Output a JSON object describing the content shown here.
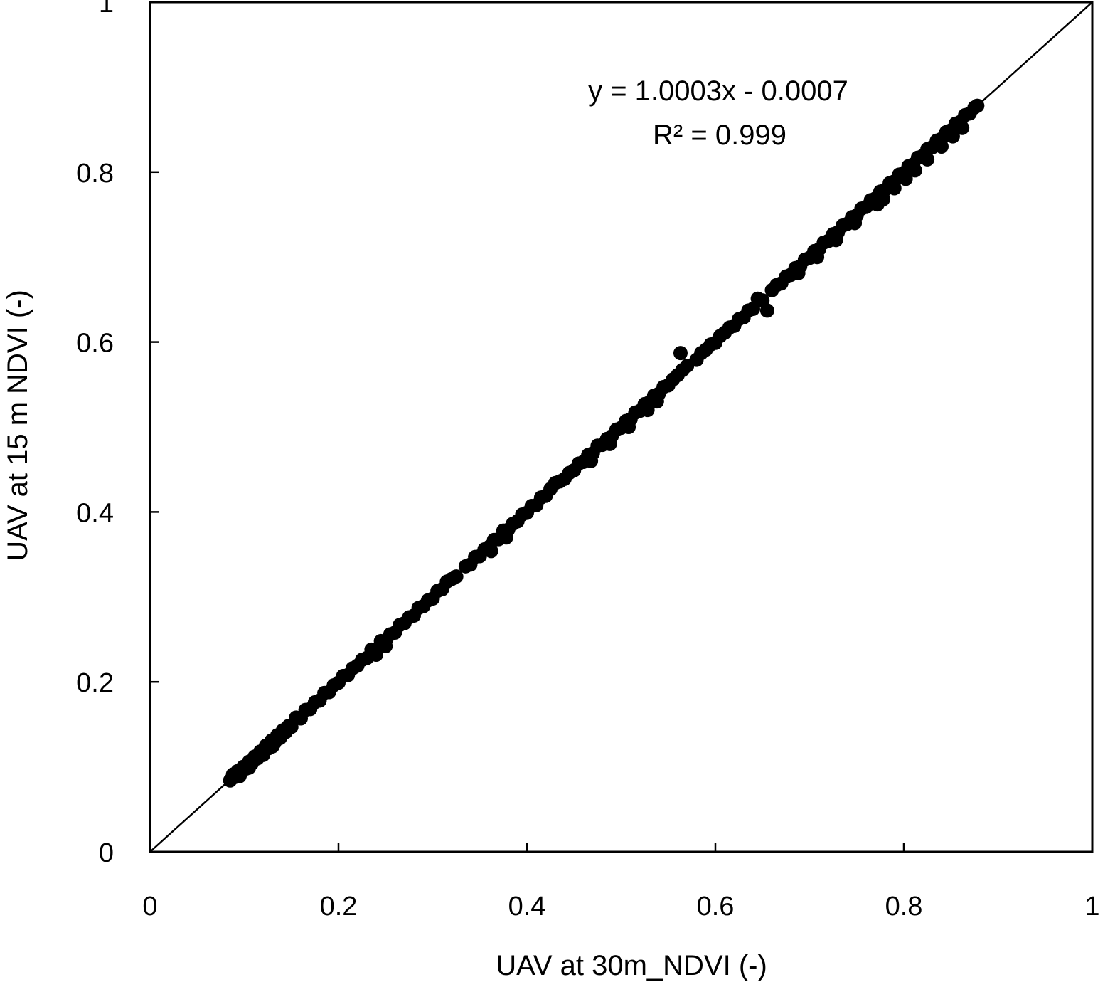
{
  "chart_data": {
    "type": "scatter",
    "xlabel": "UAV at 30m_NDVI (-)",
    "ylabel": "UAV at 15 m NDVI (-)",
    "xlim": [
      0,
      1
    ],
    "ylim": [
      0,
      1
    ],
    "x_ticks": [
      "0",
      "0.2",
      "0.4",
      "0.6",
      "0.8",
      "1"
    ],
    "y_ticks": [
      "0",
      "0.2",
      "0.4",
      "0.6",
      "0.8",
      "1"
    ],
    "grid": false,
    "reference_line": {
      "type": "1:1",
      "from": [
        0,
        0
      ],
      "to": [
        1,
        1
      ]
    },
    "annotations": [
      "y = 1.0003x - 0.0007",
      "R² = 0.999"
    ],
    "marker_color": "#000000",
    "series": [
      {
        "points": [
          [
            0.085,
            0.084
          ],
          [
            0.088,
            0.091
          ],
          [
            0.09,
            0.088
          ],
          [
            0.093,
            0.095
          ],
          [
            0.096,
            0.092
          ],
          [
            0.099,
            0.1
          ],
          [
            0.102,
            0.098
          ],
          [
            0.105,
            0.106
          ],
          [
            0.108,
            0.104
          ],
          [
            0.111,
            0.112
          ],
          [
            0.114,
            0.11
          ],
          [
            0.117,
            0.118
          ],
          [
            0.12,
            0.116
          ],
          [
            0.123,
            0.125
          ],
          [
            0.126,
            0.122
          ],
          [
            0.129,
            0.131
          ],
          [
            0.132,
            0.128
          ],
          [
            0.135,
            0.137
          ],
          [
            0.138,
            0.134
          ],
          [
            0.141,
            0.143
          ],
          [
            0.144,
            0.141
          ],
          [
            0.147,
            0.148
          ],
          [
            0.15,
            0.147
          ],
          [
            0.155,
            0.158
          ],
          [
            0.16,
            0.157
          ],
          [
            0.165,
            0.167
          ],
          [
            0.17,
            0.168
          ],
          [
            0.175,
            0.176
          ],
          [
            0.18,
            0.178
          ],
          [
            0.185,
            0.187
          ],
          [
            0.19,
            0.188
          ],
          [
            0.195,
            0.196
          ],
          [
            0.2,
            0.199
          ],
          [
            0.205,
            0.207
          ],
          [
            0.21,
            0.208
          ],
          [
            0.215,
            0.216
          ],
          [
            0.22,
            0.219
          ],
          [
            0.225,
            0.226
          ],
          [
            0.23,
            0.228
          ],
          [
            0.235,
            0.238
          ],
          [
            0.24,
            0.237
          ],
          [
            0.245,
            0.248
          ],
          [
            0.25,
            0.248
          ],
          [
            0.255,
            0.256
          ],
          [
            0.26,
            0.258
          ],
          [
            0.265,
            0.267
          ],
          [
            0.27,
            0.269
          ],
          [
            0.275,
            0.276
          ],
          [
            0.28,
            0.278
          ],
          [
            0.285,
            0.287
          ],
          [
            0.29,
            0.289
          ],
          [
            0.295,
            0.296
          ],
          [
            0.3,
            0.298
          ],
          [
            0.305,
            0.307
          ],
          [
            0.31,
            0.309
          ],
          [
            0.315,
            0.318
          ],
          [
            0.32,
            0.321
          ],
          [
            0.325,
            0.324
          ],
          [
            0.335,
            0.336
          ],
          [
            0.34,
            0.338
          ],
          [
            0.345,
            0.347
          ],
          [
            0.35,
            0.348
          ],
          [
            0.355,
            0.356
          ],
          [
            0.36,
            0.359
          ],
          [
            0.365,
            0.367
          ],
          [
            0.37,
            0.368
          ],
          [
            0.375,
            0.378
          ],
          [
            0.38,
            0.379
          ],
          [
            0.385,
            0.386
          ],
          [
            0.39,
            0.389
          ],
          [
            0.395,
            0.397
          ],
          [
            0.4,
            0.399
          ],
          [
            0.405,
            0.407
          ],
          [
            0.41,
            0.408
          ],
          [
            0.415,
            0.417
          ],
          [
            0.42,
            0.419
          ],
          [
            0.425,
            0.427
          ],
          [
            0.43,
            0.434
          ],
          [
            0.435,
            0.436
          ],
          [
            0.44,
            0.439
          ],
          [
            0.445,
            0.446
          ],
          [
            0.45,
            0.449
          ],
          [
            0.455,
            0.457
          ],
          [
            0.46,
            0.459
          ],
          [
            0.465,
            0.467
          ],
          [
            0.47,
            0.469
          ],
          [
            0.475,
            0.478
          ],
          [
            0.48,
            0.479
          ],
          [
            0.485,
            0.486
          ],
          [
            0.49,
            0.489
          ],
          [
            0.495,
            0.497
          ],
          [
            0.5,
            0.499
          ],
          [
            0.505,
            0.507
          ],
          [
            0.51,
            0.509
          ],
          [
            0.515,
            0.517
          ],
          [
            0.52,
            0.519
          ],
          [
            0.525,
            0.527
          ],
          [
            0.53,
            0.529
          ],
          [
            0.535,
            0.537
          ],
          [
            0.54,
            0.539
          ],
          [
            0.545,
            0.547
          ],
          [
            0.55,
            0.549
          ],
          [
            0.555,
            0.556
          ],
          [
            0.56,
            0.561
          ],
          [
            0.563,
            0.587
          ],
          [
            0.565,
            0.567
          ],
          [
            0.57,
            0.572
          ],
          [
            0.58,
            0.579
          ],
          [
            0.585,
            0.587
          ],
          [
            0.59,
            0.591
          ],
          [
            0.595,
            0.597
          ],
          [
            0.6,
            0.599
          ],
          [
            0.605,
            0.607
          ],
          [
            0.61,
            0.611
          ],
          [
            0.615,
            0.617
          ],
          [
            0.62,
            0.619
          ],
          [
            0.625,
            0.627
          ],
          [
            0.63,
            0.629
          ],
          [
            0.635,
            0.637
          ],
          [
            0.64,
            0.639
          ],
          [
            0.645,
            0.651
          ],
          [
            0.65,
            0.649
          ],
          [
            0.655,
            0.637
          ],
          [
            0.66,
            0.661
          ],
          [
            0.665,
            0.667
          ],
          [
            0.67,
            0.669
          ],
          [
            0.675,
            0.677
          ],
          [
            0.68,
            0.679
          ],
          [
            0.685,
            0.687
          ],
          [
            0.69,
            0.689
          ],
          [
            0.695,
            0.697
          ],
          [
            0.7,
            0.699
          ],
          [
            0.705,
            0.707
          ],
          [
            0.71,
            0.709
          ],
          [
            0.715,
            0.717
          ],
          [
            0.72,
            0.719
          ],
          [
            0.725,
            0.727
          ],
          [
            0.73,
            0.729
          ],
          [
            0.735,
            0.737
          ],
          [
            0.74,
            0.739
          ],
          [
            0.745,
            0.747
          ],
          [
            0.75,
            0.749
          ],
          [
            0.755,
            0.757
          ],
          [
            0.76,
            0.759
          ],
          [
            0.765,
            0.767
          ],
          [
            0.77,
            0.769
          ],
          [
            0.775,
            0.777
          ],
          [
            0.78,
            0.779
          ],
          [
            0.785,
            0.787
          ],
          [
            0.79,
            0.789
          ],
          [
            0.795,
            0.797
          ],
          [
            0.8,
            0.799
          ],
          [
            0.805,
            0.807
          ],
          [
            0.81,
            0.809
          ],
          [
            0.815,
            0.817
          ],
          [
            0.82,
            0.819
          ],
          [
            0.825,
            0.827
          ],
          [
            0.83,
            0.829
          ],
          [
            0.835,
            0.837
          ],
          [
            0.84,
            0.839
          ],
          [
            0.845,
            0.847
          ],
          [
            0.85,
            0.849
          ],
          [
            0.855,
            0.857
          ],
          [
            0.86,
            0.859
          ],
          [
            0.865,
            0.867
          ],
          [
            0.87,
            0.869
          ],
          [
            0.875,
            0.876
          ],
          [
            0.878,
            0.878
          ],
          [
            0.772,
            0.762
          ],
          [
            0.778,
            0.768
          ],
          [
            0.79,
            0.781
          ],
          [
            0.802,
            0.792
          ],
          [
            0.812,
            0.802
          ],
          [
            0.825,
            0.815
          ],
          [
            0.84,
            0.83
          ],
          [
            0.852,
            0.842
          ],
          [
            0.862,
            0.852
          ],
          [
            0.748,
            0.74
          ],
          [
            0.728,
            0.72
          ],
          [
            0.708,
            0.7
          ],
          [
            0.688,
            0.681
          ],
          [
            0.538,
            0.53
          ],
          [
            0.528,
            0.52
          ],
          [
            0.508,
            0.5
          ],
          [
            0.488,
            0.48
          ],
          [
            0.468,
            0.46
          ],
          [
            0.378,
            0.37
          ],
          [
            0.362,
            0.354
          ],
          [
            0.24,
            0.232
          ],
          [
            0.25,
            0.242
          ],
          [
            0.13,
            0.124
          ],
          [
            0.12,
            0.114
          ],
          [
            0.105,
            0.099
          ],
          [
            0.095,
            0.089
          ]
        ]
      }
    ]
  }
}
